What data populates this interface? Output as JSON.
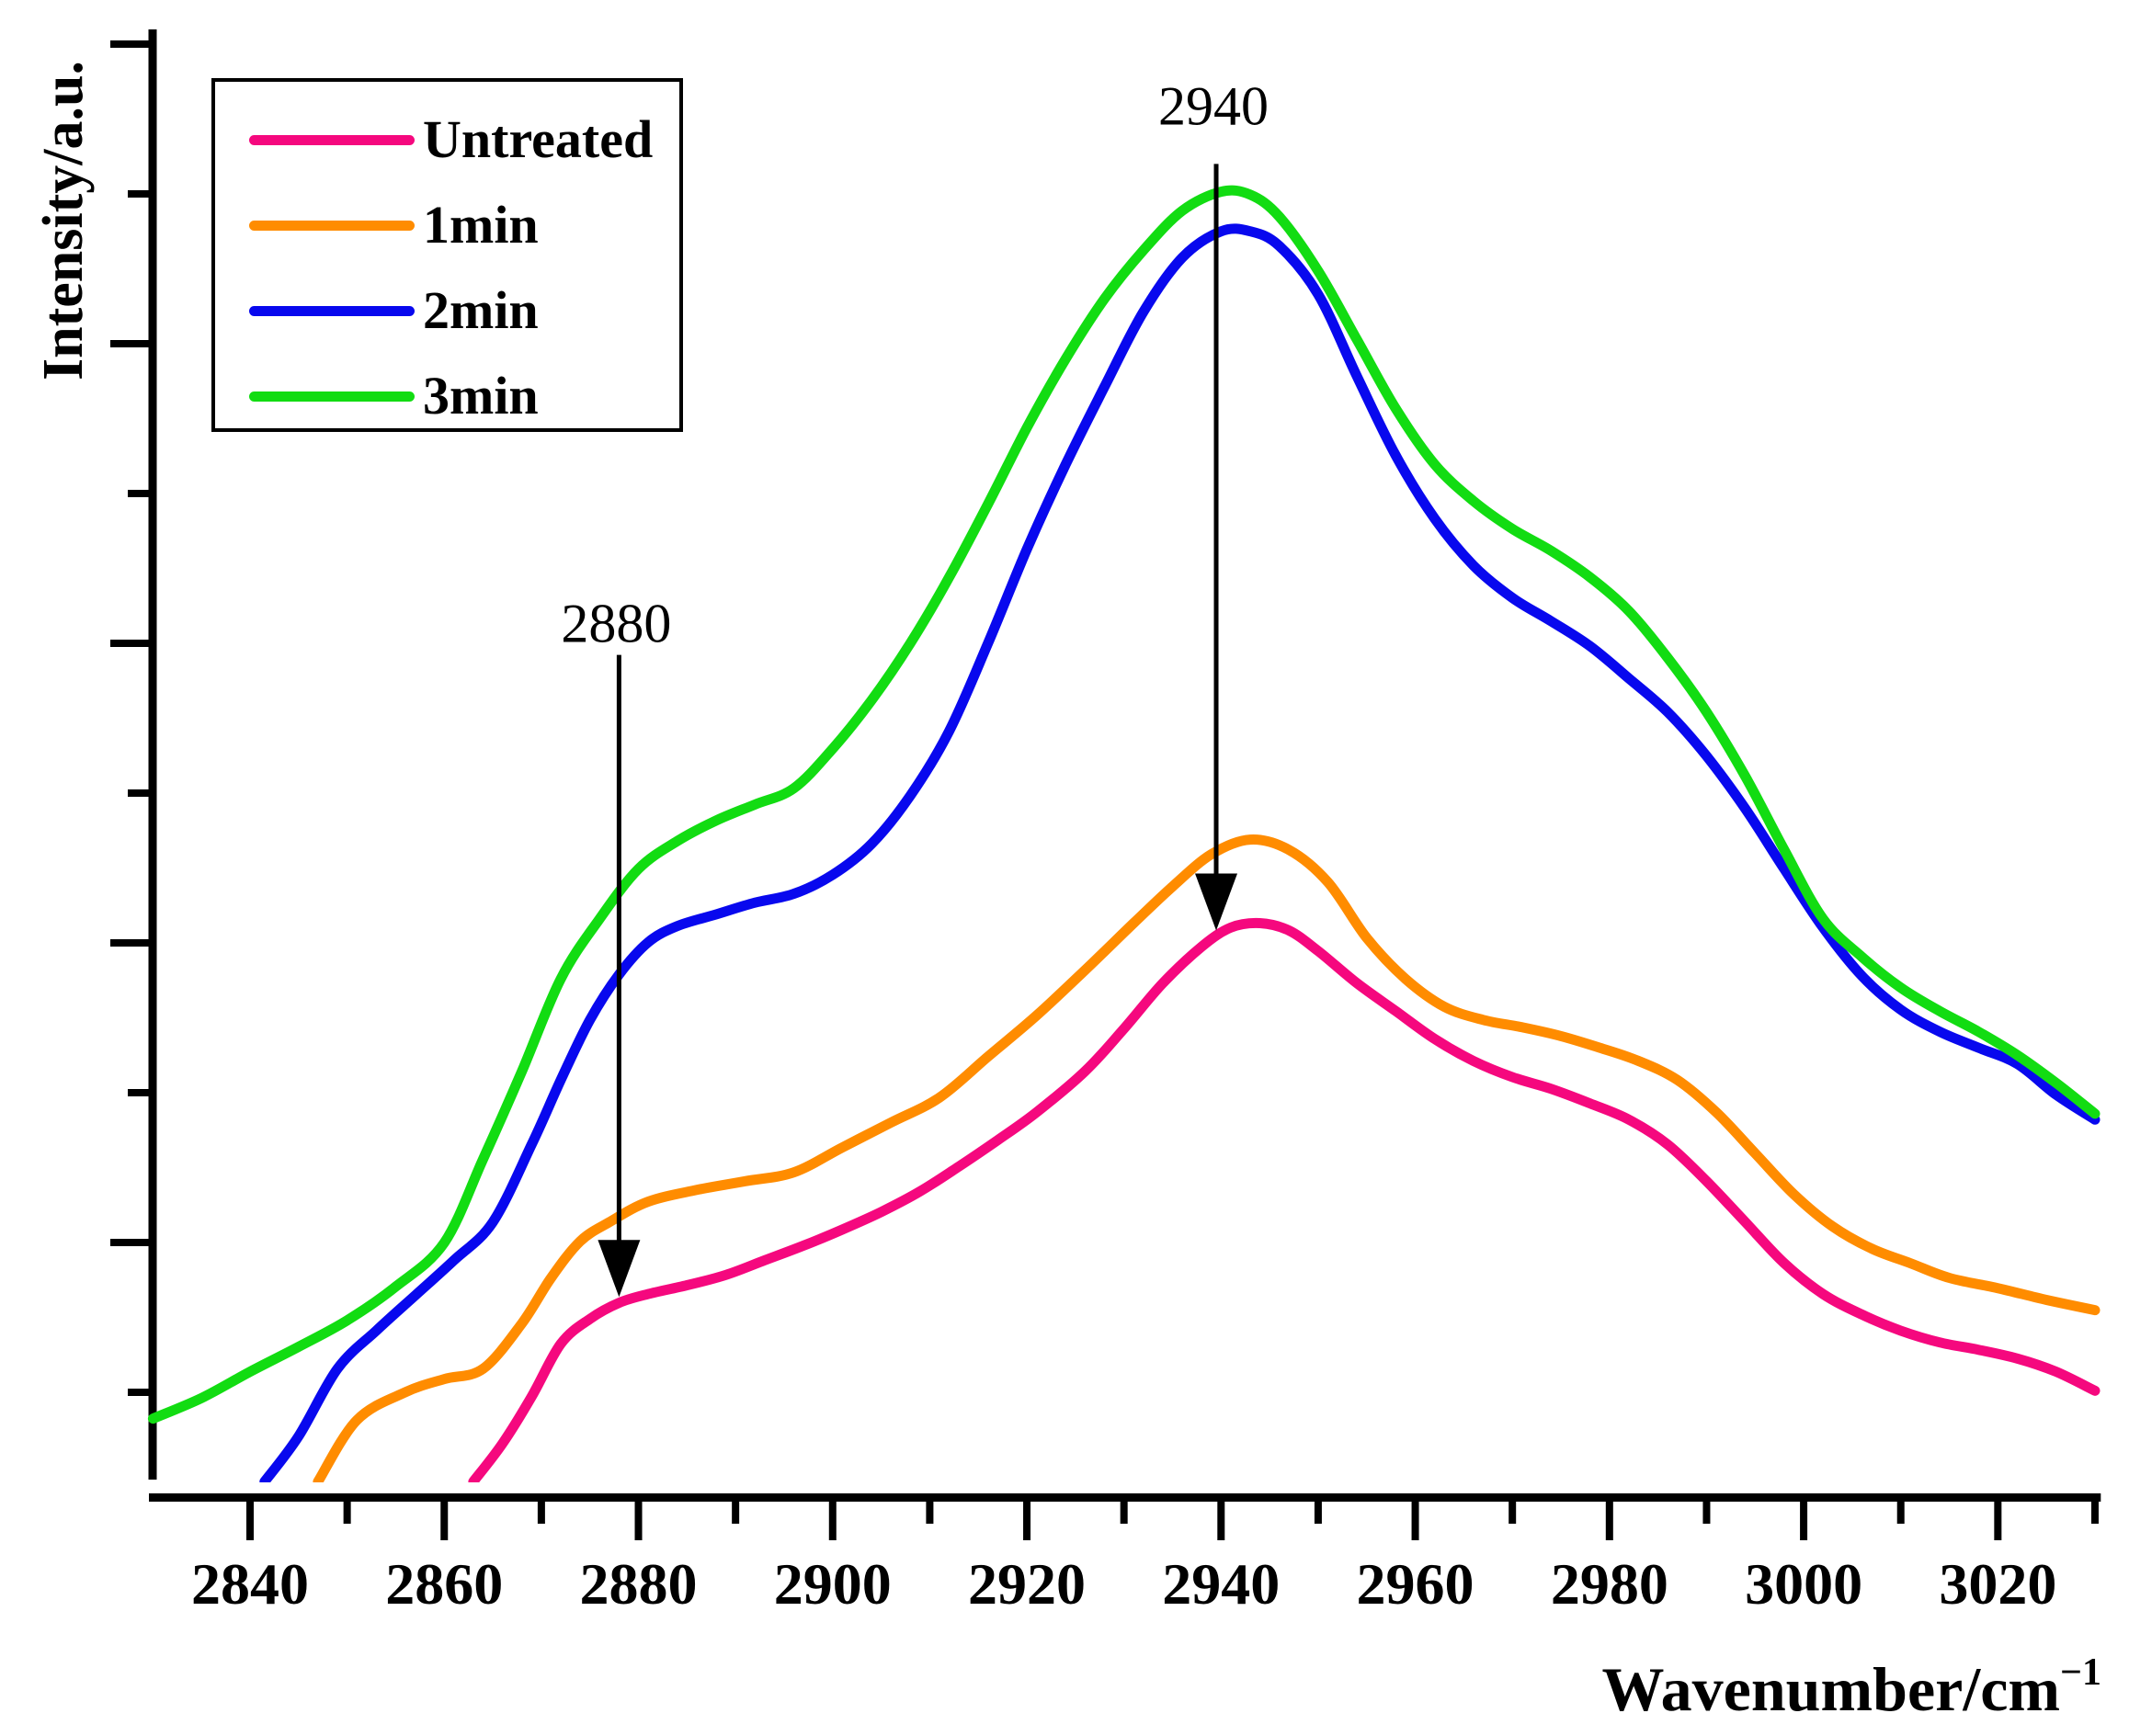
{
  "chart_data": {
    "type": "line",
    "title": "",
    "ylabel": "Intensity/a.u.",
    "xlabel_base": "Wavenumber/cm",
    "xlabel_sup": "−1",
    "x_range": [
      2830,
      3030.6
    ],
    "y_range": [
      0,
      1
    ],
    "grid": false,
    "legend_position": "top-left",
    "x_ticks_labeled": [
      2840,
      2860,
      2880,
      2900,
      2920,
      2940,
      2960,
      2980,
      3000,
      3020
    ],
    "x_ticks_minor": [
      2850,
      2870,
      2890,
      2910,
      2930,
      2950,
      2970,
      2990,
      3010,
      3030
    ],
    "annotations": [
      {
        "label": "2880",
        "arrow_x": 2878,
        "text_intensity": 0.594,
        "arrow_from_intensity": 0.572,
        "arrow_to_intensity": 0.134
      },
      {
        "label": "2940",
        "arrow_x": 2939.5,
        "text_intensity": 0.947,
        "arrow_from_intensity": 0.907,
        "arrow_to_intensity": 0.384
      }
    ],
    "series": [
      {
        "name": "Untreated",
        "color": "#F5087E",
        "points": [
          [
            2863,
            0.008
          ],
          [
            2866,
            0.034
          ],
          [
            2869,
            0.066
          ],
          [
            2872,
            0.102
          ],
          [
            2875,
            0.119
          ],
          [
            2878,
            0.13
          ],
          [
            2881,
            0.136
          ],
          [
            2885,
            0.142
          ],
          [
            2889,
            0.149
          ],
          [
            2893,
            0.159
          ],
          [
            2897,
            0.169
          ],
          [
            2901,
            0.18
          ],
          [
            2905,
            0.192
          ],
          [
            2909,
            0.206
          ],
          [
            2913,
            0.223
          ],
          [
            2917,
            0.241
          ],
          [
            2921,
            0.26
          ],
          [
            2926,
            0.288
          ],
          [
            2930,
            0.317
          ],
          [
            2934,
            0.348
          ],
          [
            2938,
            0.373
          ],
          [
            2941,
            0.386
          ],
          [
            2944,
            0.389
          ],
          [
            2947,
            0.384
          ],
          [
            2950,
            0.37
          ],
          [
            2954,
            0.348
          ],
          [
            2958,
            0.329
          ],
          [
            2962,
            0.31
          ],
          [
            2966,
            0.295
          ],
          [
            2970,
            0.284
          ],
          [
            2974,
            0.276
          ],
          [
            2978,
            0.266
          ],
          [
            2982,
            0.255
          ],
          [
            2986,
            0.238
          ],
          [
            2990,
            0.213
          ],
          [
            2994,
            0.185
          ],
          [
            2998,
            0.157
          ],
          [
            3002,
            0.136
          ],
          [
            3006,
            0.122
          ],
          [
            3010,
            0.111
          ],
          [
            3014,
            0.103
          ],
          [
            3018,
            0.098
          ],
          [
            3022,
            0.092
          ],
          [
            3026,
            0.083
          ],
          [
            3030,
            0.07
          ]
        ]
      },
      {
        "name": "1min",
        "color": "#FF8C00",
        "points": [
          [
            2847,
            0.008
          ],
          [
            2851,
            0.05
          ],
          [
            2856,
            0.069
          ],
          [
            2860,
            0.078
          ],
          [
            2864,
            0.085
          ],
          [
            2868,
            0.116
          ],
          [
            2871,
            0.147
          ],
          [
            2874,
            0.172
          ],
          [
            2877,
            0.185
          ],
          [
            2881,
            0.199
          ],
          [
            2886,
            0.207
          ],
          [
            2891,
            0.213
          ],
          [
            2896,
            0.219
          ],
          [
            2901,
            0.236
          ],
          [
            2906,
            0.253
          ],
          [
            2911,
            0.27
          ],
          [
            2916,
            0.298
          ],
          [
            2921,
            0.326
          ],
          [
            2926,
            0.357
          ],
          [
            2931,
            0.389
          ],
          [
            2935,
            0.414
          ],
          [
            2939,
            0.436
          ],
          [
            2943,
            0.446
          ],
          [
            2947,
            0.439
          ],
          [
            2951,
            0.417
          ],
          [
            2955,
            0.379
          ],
          [
            2959,
            0.351
          ],
          [
            2963,
            0.332
          ],
          [
            2967,
            0.323
          ],
          [
            2971,
            0.318
          ],
          [
            2975,
            0.312
          ],
          [
            2979,
            0.304
          ],
          [
            2983,
            0.295
          ],
          [
            2987,
            0.282
          ],
          [
            2991,
            0.26
          ],
          [
            2995,
            0.232
          ],
          [
            2999,
            0.204
          ],
          [
            3003,
            0.182
          ],
          [
            3007,
            0.167
          ],
          [
            3011,
            0.157
          ],
          [
            3015,
            0.147
          ],
          [
            3020,
            0.14
          ],
          [
            3025,
            0.132
          ],
          [
            3030,
            0.125
          ]
        ]
      },
      {
        "name": "2min",
        "color": "#0808EE",
        "points": [
          [
            2841.5,
            0.008
          ],
          [
            2845,
            0.039
          ],
          [
            2849,
            0.085
          ],
          [
            2853,
            0.111
          ],
          [
            2857,
            0.135
          ],
          [
            2861,
            0.159
          ],
          [
            2865,
            0.185
          ],
          [
            2869,
            0.238
          ],
          [
            2872,
            0.282
          ],
          [
            2875,
            0.323
          ],
          [
            2878,
            0.354
          ],
          [
            2881,
            0.376
          ],
          [
            2884,
            0.387
          ],
          [
            2888,
            0.395
          ],
          [
            2892,
            0.403
          ],
          [
            2896,
            0.409
          ],
          [
            2900,
            0.422
          ],
          [
            2904,
            0.443
          ],
          [
            2908,
            0.476
          ],
          [
            2912,
            0.52
          ],
          [
            2916,
            0.58
          ],
          [
            2920,
            0.644
          ],
          [
            2924,
            0.702
          ],
          [
            2928,
            0.755
          ],
          [
            2932,
            0.806
          ],
          [
            2936,
            0.843
          ],
          [
            2940,
            0.861
          ],
          [
            2943,
            0.861
          ],
          [
            2946,
            0.851
          ],
          [
            2950,
            0.818
          ],
          [
            2954,
            0.762
          ],
          [
            2958,
            0.708
          ],
          [
            2962,
            0.665
          ],
          [
            2966,
            0.633
          ],
          [
            2970,
            0.611
          ],
          [
            2974,
            0.595
          ],
          [
            2978,
            0.578
          ],
          [
            2982,
            0.556
          ],
          [
            2986,
            0.533
          ],
          [
            2990,
            0.503
          ],
          [
            2994,
            0.467
          ],
          [
            2998,
            0.426
          ],
          [
            3002,
            0.386
          ],
          [
            3006,
            0.353
          ],
          [
            3010,
            0.33
          ],
          [
            3014,
            0.315
          ],
          [
            3018,
            0.304
          ],
          [
            3022,
            0.293
          ],
          [
            3026,
            0.272
          ],
          [
            3030,
            0.255
          ]
        ]
      },
      {
        "name": "3min",
        "color": "#12DC12",
        "points": [
          [
            2830,
            0.051
          ],
          [
            2835,
            0.065
          ],
          [
            2840,
            0.083
          ],
          [
            2845,
            0.1
          ],
          [
            2850,
            0.118
          ],
          [
            2855,
            0.141
          ],
          [
            2860,
            0.171
          ],
          [
            2864,
            0.228
          ],
          [
            2868,
            0.288
          ],
          [
            2872,
            0.351
          ],
          [
            2876,
            0.392
          ],
          [
            2880,
            0.426
          ],
          [
            2884,
            0.445
          ],
          [
            2888,
            0.459
          ],
          [
            2892,
            0.47
          ],
          [
            2896,
            0.481
          ],
          [
            2900,
            0.508
          ],
          [
            2904,
            0.541
          ],
          [
            2908,
            0.58
          ],
          [
            2912,
            0.625
          ],
          [
            2916,
            0.675
          ],
          [
            2920,
            0.727
          ],
          [
            2924,
            0.774
          ],
          [
            2928,
            0.815
          ],
          [
            2932,
            0.848
          ],
          [
            2936,
            0.875
          ],
          [
            2940,
            0.888
          ],
          [
            2943,
            0.886
          ],
          [
            2946,
            0.871
          ],
          [
            2950,
            0.834
          ],
          [
            2954,
            0.787
          ],
          [
            2958,
            0.74
          ],
          [
            2962,
            0.702
          ],
          [
            2966,
            0.677
          ],
          [
            2970,
            0.658
          ],
          [
            2974,
            0.643
          ],
          [
            2978,
            0.625
          ],
          [
            2982,
            0.602
          ],
          [
            2986,
            0.57
          ],
          [
            2990,
            0.533
          ],
          [
            2994,
            0.489
          ],
          [
            2998,
            0.439
          ],
          [
            3002,
            0.392
          ],
          [
            3006,
            0.366
          ],
          [
            3010,
            0.345
          ],
          [
            3014,
            0.329
          ],
          [
            3018,
            0.315
          ],
          [
            3022,
            0.299
          ],
          [
            3026,
            0.28
          ],
          [
            3030,
            0.259
          ]
        ]
      }
    ]
  }
}
